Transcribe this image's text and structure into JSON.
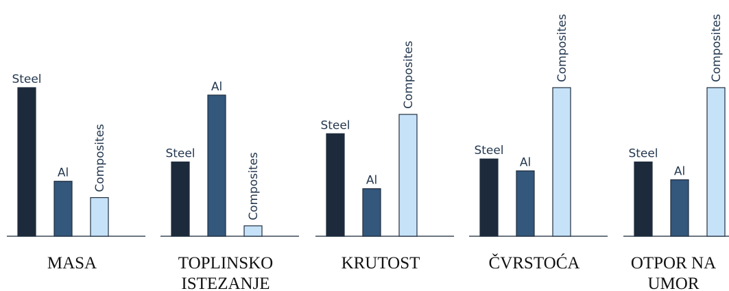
{
  "chart_data": {
    "type": "bar",
    "title": "",
    "xlabel": "",
    "ylabel": "",
    "ylim": [
      0,
      100
    ],
    "grid": false,
    "legend": "none",
    "groups": [
      {
        "label_lines": [
          "MASA"
        ],
        "bars": [
          {
            "name": "Steel",
            "value": 100
          },
          {
            "name": "Al",
            "value": 37
          },
          {
            "name": "Composites",
            "value": 26
          }
        ]
      },
      {
        "label_lines": [
          "TOPLINSKO",
          "ISTEZANJE"
        ],
        "bars": [
          {
            "name": "Steel",
            "value": 50
          },
          {
            "name": "Al",
            "value": 95
          },
          {
            "name": "Composites",
            "value": 7
          }
        ]
      },
      {
        "label_lines": [
          "KRUTOST"
        ],
        "bars": [
          {
            "name": "Steel",
            "value": 69
          },
          {
            "name": "Al",
            "value": 32
          },
          {
            "name": "Composites",
            "value": 82
          }
        ]
      },
      {
        "label_lines": [
          "ČVRSTOĆA"
        ],
        "bars": [
          {
            "name": "Steel",
            "value": 52
          },
          {
            "name": "Al",
            "value": 44
          },
          {
            "name": "Composites",
            "value": 100
          }
        ]
      },
      {
        "label_lines": [
          "OTPOR NA",
          "UMOR"
        ],
        "bars": [
          {
            "name": "Steel",
            "value": 50
          },
          {
            "name": "Al",
            "value": 38
          },
          {
            "name": "Composites",
            "value": 100
          }
        ]
      }
    ],
    "colors": {
      "Steel": "#1c2a3b",
      "Al": "#34577c",
      "Composites": "#c6e2f8",
      "outline": "#1f2d3d",
      "label_text": "#24384f",
      "axis": "#3a4656",
      "group_text": "#111111"
    }
  }
}
